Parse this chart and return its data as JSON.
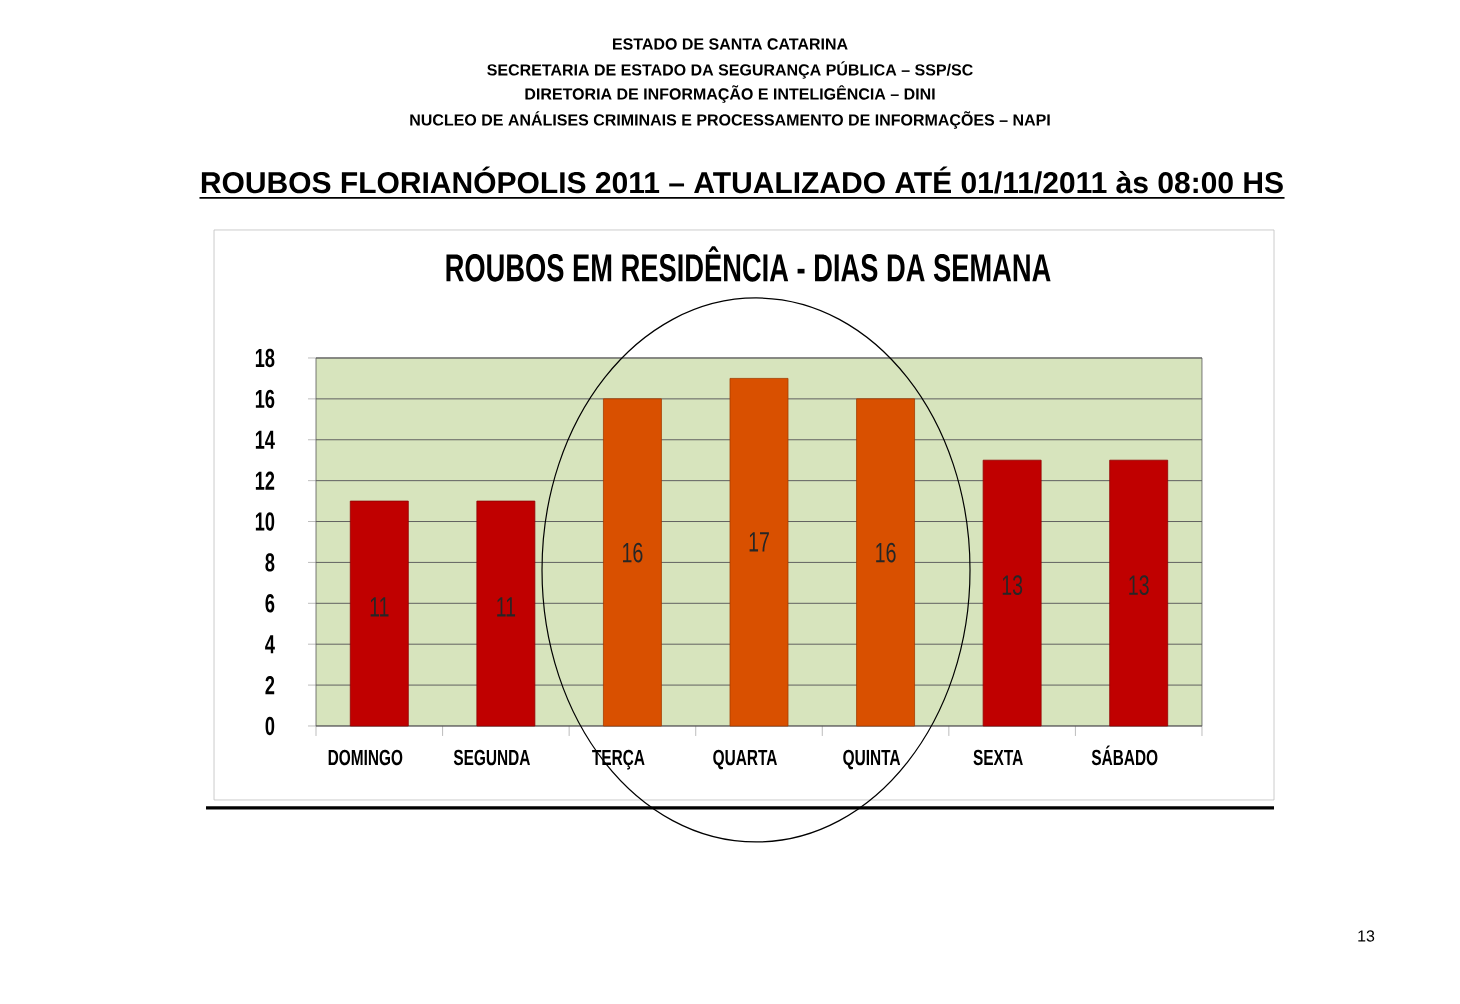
{
  "chart_data": {
    "type": "bar",
    "title": "ROUBOS EM RESIDÊNCIA - DIAS DA SEMANA",
    "subtitle": "ROUBOS FLORIANÓPOLIS 2011 – ATUALIZADO ATÉ 01/11/2011 às 08:00 HS",
    "annotations": [
      "ESTADO DE SANTA CATARINA",
      "SECRETARIA DE ESTADO DA SEGURANÇA PÚBLICA – SSP/SC",
      "DIRETORIA DE INFORMAÇÃO E INTELIGÊNCIA – DINI",
      "NUCLEO DE ANÁLISES CRIMINAIS E PROCESSAMENTO DE INFORMAÇÕES – NAPI",
      "13"
    ],
    "categories": [
      "DOMINGO",
      "SEGUNDA",
      "TERÇA",
      "QUARTA",
      "QUINTA",
      "SEXTA",
      "SÁBADO"
    ],
    "values": [
      11,
      11,
      16,
      17,
      16,
      13,
      13
    ],
    "colors": [
      "#c00000",
      "#c00000",
      "#d95000",
      "#d95000",
      "#d95000",
      "#c00000",
      "#c00000"
    ],
    "ylim": [
      0,
      18
    ],
    "yticks": [
      0,
      2,
      4,
      6,
      8,
      10,
      12,
      14,
      16,
      18
    ],
    "grid": "y",
    "data_labels": true
  }
}
